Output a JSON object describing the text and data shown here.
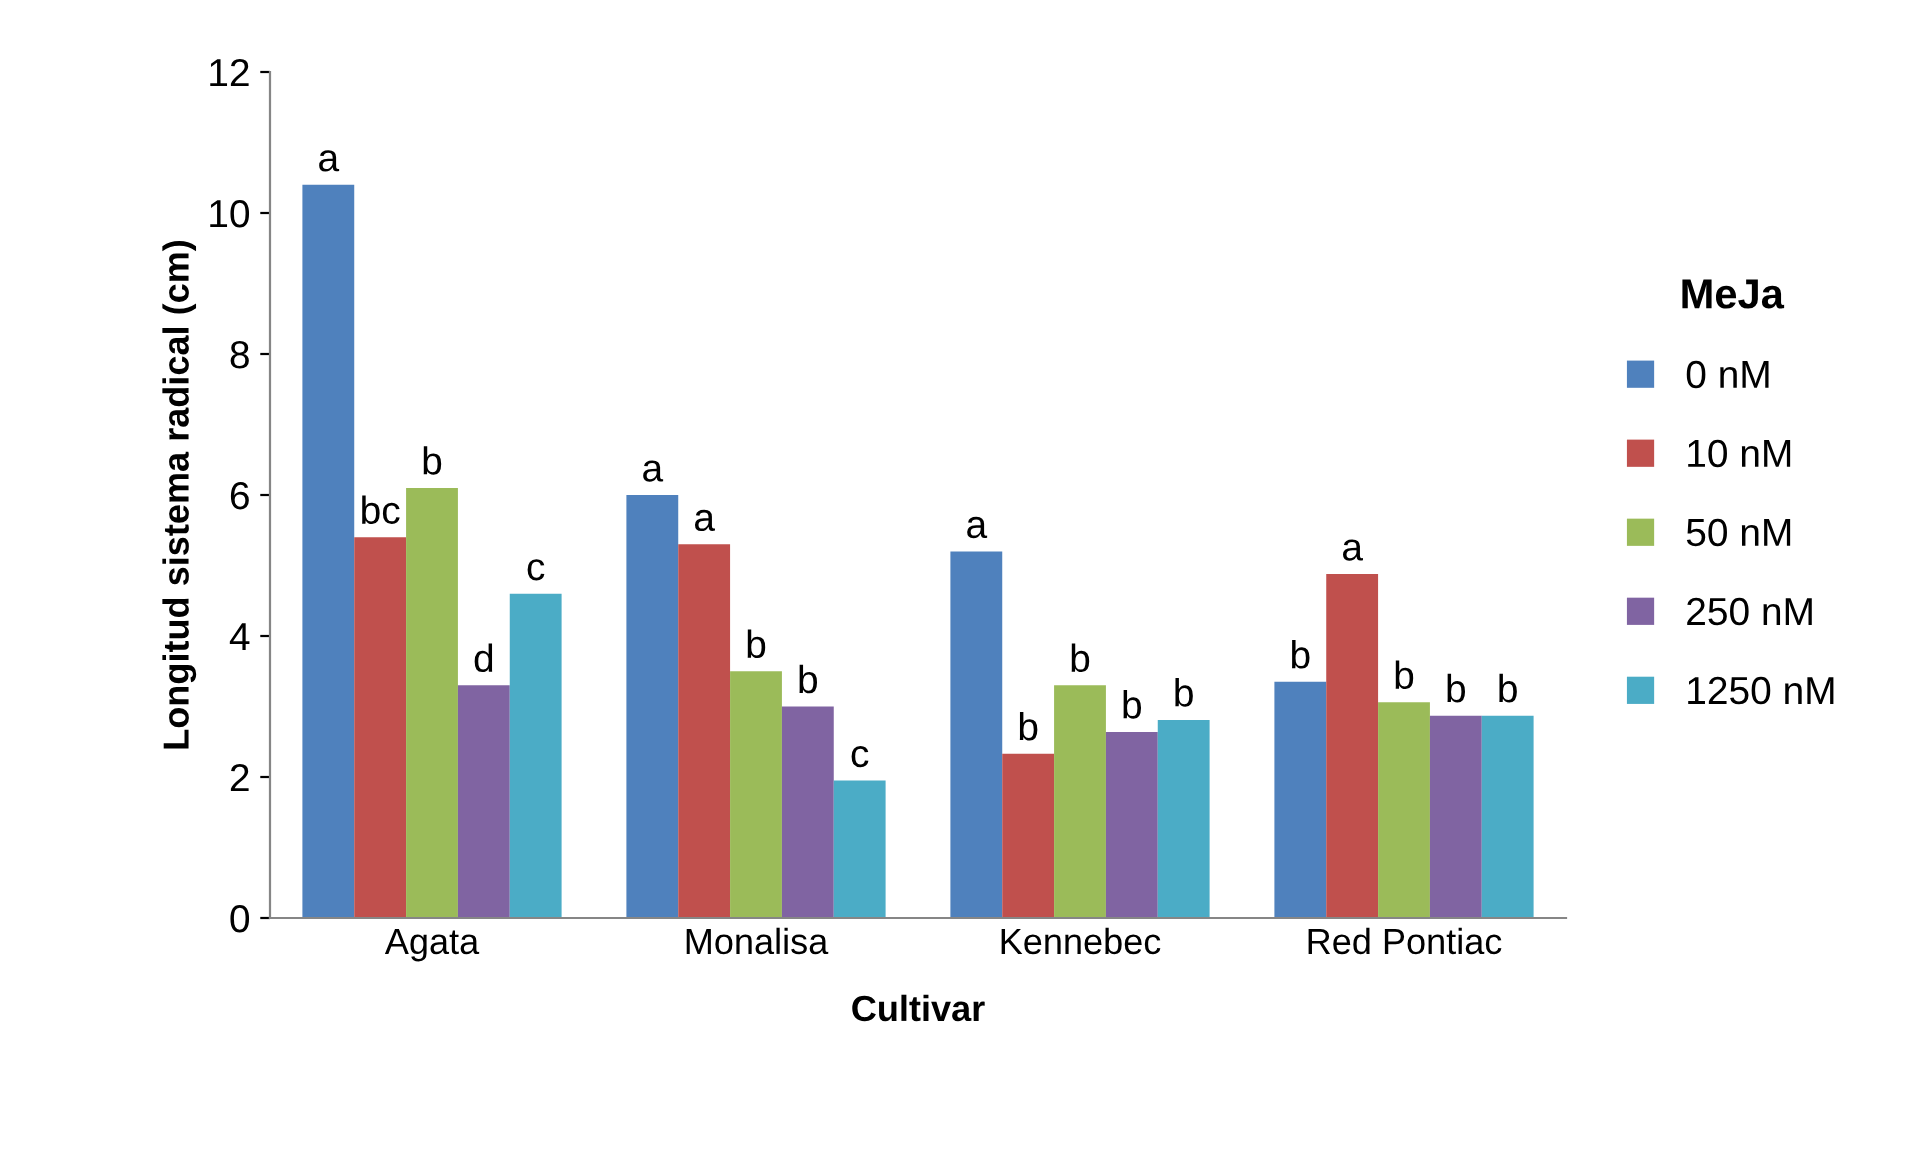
{
  "chart_data": {
    "type": "bar",
    "xlabel": "Cultivar",
    "ylabel": "Longitud sistema radical (cm)",
    "legend_title": "MeJa",
    "legend": "right",
    "categories": [
      "Agata",
      "Monalisa",
      "Kennebec",
      "Red Pontiac"
    ],
    "ylim": [
      0,
      12
    ],
    "yticks": [
      0,
      2,
      4,
      6,
      8,
      10,
      12
    ],
    "grid": false,
    "series": [
      {
        "name": "0 nM",
        "color": "#4f81bd",
        "values": [
          10.4,
          6.0,
          5.2,
          3.35
        ],
        "value_labels": [
          "a",
          "a",
          "a",
          "b"
        ]
      },
      {
        "name": "10 nM",
        "color": "#c0504d",
        "values": [
          5.4,
          5.3,
          2.33,
          4.88
        ],
        "value_labels": [
          "bc",
          "a",
          "b",
          "a"
        ]
      },
      {
        "name": "50 nM",
        "color": "#9bbb59",
        "values": [
          6.1,
          3.5,
          3.3,
          3.06
        ],
        "value_labels": [
          "b",
          "b",
          "b",
          "b"
        ]
      },
      {
        "name": "250 nM",
        "color": "#8064a2",
        "values": [
          3.3,
          3.0,
          2.64,
          2.87
        ],
        "value_labels": [
          "d",
          "b",
          "b",
          "b"
        ]
      },
      {
        "name": "1250 nM",
        "color": "#4bacc6",
        "values": [
          4.6,
          1.95,
          2.81,
          2.87
        ],
        "value_labels": [
          "c",
          "c",
          "b",
          "b"
        ]
      }
    ]
  }
}
